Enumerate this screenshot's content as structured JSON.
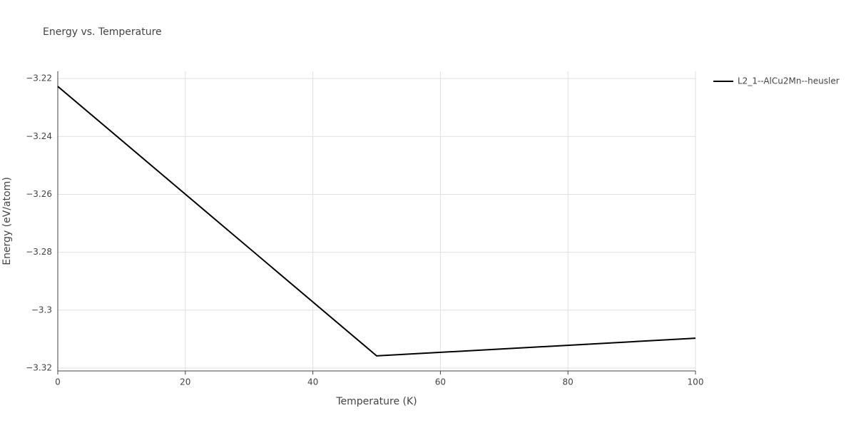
{
  "chart_data": {
    "type": "line",
    "title": "Energy vs. Temperature",
    "x_label": "Temperature (K)",
    "y_label": "Energy (eV/atom)",
    "x": [
      0,
      50,
      100
    ],
    "series": [
      {
        "name": "L2_1--AlCu2Mn--heusler",
        "color": "#000000",
        "values": [
          -3.2227,
          -3.3158,
          -3.3097
        ]
      }
    ],
    "xlim": [
      0,
      100
    ],
    "xticks": [
      0,
      20,
      40,
      60,
      80,
      100
    ],
    "ylim": [
      -3.321,
      -3.2175
    ],
    "yticks": [
      {
        "value": -3.32,
        "label": "−3.32"
      },
      {
        "value": -3.3,
        "label": "−3.3"
      },
      {
        "value": -3.28,
        "label": "−3.28"
      },
      {
        "value": -3.26,
        "label": "−3.26"
      },
      {
        "value": -3.24,
        "label": "−3.24"
      },
      {
        "value": -3.22,
        "label": "−3.22"
      }
    ],
    "grid": true,
    "legend": "top-right"
  }
}
